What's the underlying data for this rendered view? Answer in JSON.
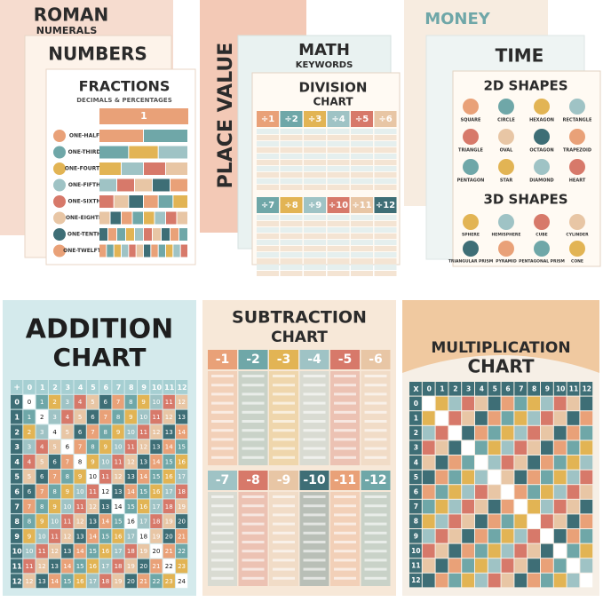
{
  "posters": {
    "roman": {
      "title": "ROMAN",
      "subtitle": "NUMERALS"
    },
    "numbers": {
      "title": "NUMBERS"
    },
    "fractions": {
      "title": "FRACTIONS",
      "subtitle": "DECIMALS & PERCENTAGES",
      "whole": "1",
      "rows": [
        "ONE-HALF",
        "ONE-THIRD",
        "ONE-FOURTH",
        "ONE-FIFTH",
        "ONE-SIXTH",
        "ONE-EIGHTH",
        "ONE-TENTH",
        "ONE-TWELFTH"
      ]
    },
    "place_value": {
      "title": "PLACE VALUE"
    },
    "math_keywords": {
      "title": "MATH",
      "subtitle": "KEYWORDS"
    },
    "division": {
      "title": "DIVISION",
      "subtitle": "CHART",
      "headers_top": [
        "÷1",
        "÷2",
        "÷3",
        "÷4",
        "÷5",
        "÷6"
      ],
      "headers_bottom": [
        "÷7",
        "÷8",
        "÷9",
        "÷10",
        "÷11",
        "÷12"
      ]
    },
    "money": {
      "title": "MONEY"
    },
    "time": {
      "title": "TIME"
    },
    "shapes_2d": {
      "title": "2D SHAPES",
      "labels": [
        "SQUARE",
        "CIRCLE",
        "HEXAGON",
        "RECTANGLE",
        "TRIANGLE",
        "OVAL",
        "OCTAGON",
        "TRAPEZOID",
        "PENTAGON",
        "STAR",
        "DIAMOND",
        "HEART"
      ]
    },
    "shapes_3d": {
      "title": "3D SHAPES",
      "labels": [
        "SPHERE",
        "HEMISPHERE",
        "CUBE",
        "CYLINDER",
        "TRIANGULAR PRISM",
        "PYRAMID",
        "PENTAGONAL PRISM",
        "CONE"
      ]
    },
    "addition": {
      "title": "ADDITION",
      "subtitle": "CHART",
      "corner": "+",
      "headers": [
        0,
        1,
        2,
        3,
        4,
        5,
        6,
        7,
        8,
        9,
        10,
        11,
        12
      ],
      "rows": [
        [
          0,
          1,
          2,
          3,
          4,
          5,
          6,
          7,
          8,
          9,
          10,
          11,
          12
        ],
        [
          1,
          2,
          3,
          4,
          5,
          6,
          7,
          8,
          9,
          10,
          11,
          12,
          13
        ],
        [
          2,
          3,
          4,
          5,
          6,
          7,
          8,
          9,
          10,
          11,
          12,
          13,
          14
        ],
        [
          3,
          4,
          5,
          6,
          7,
          8,
          9,
          10,
          11,
          12,
          13,
          14,
          15
        ],
        [
          4,
          5,
          6,
          7,
          8,
          9,
          10,
          11,
          12,
          13,
          14,
          15,
          16
        ],
        [
          5,
          6,
          7,
          8,
          9,
          10,
          11,
          12,
          13,
          14,
          15,
          16,
          17
        ],
        [
          6,
          7,
          8,
          9,
          10,
          11,
          12,
          13,
          14,
          15,
          16,
          17,
          18
        ],
        [
          7,
          8,
          9,
          10,
          11,
          12,
          13,
          14,
          15,
          16,
          17,
          18,
          19
        ],
        [
          8,
          9,
          10,
          11,
          12,
          13,
          14,
          15,
          16,
          17,
          18,
          19,
          20
        ],
        [
          9,
          10,
          11,
          12,
          13,
          14,
          15,
          16,
          17,
          18,
          19,
          20,
          21
        ],
        [
          10,
          11,
          12,
          13,
          14,
          15,
          16,
          17,
          18,
          19,
          20,
          21,
          22
        ],
        [
          11,
          12,
          13,
          14,
          15,
          16,
          17,
          18,
          19,
          20,
          21,
          22,
          23
        ],
        [
          12,
          13,
          14,
          15,
          16,
          17,
          18,
          19,
          20,
          21,
          22,
          23,
          24
        ]
      ]
    },
    "subtraction": {
      "title": "SUBTRACTION",
      "subtitle": "CHART",
      "headers_top": [
        "-1",
        "-2",
        "-3",
        "-4",
        "-5",
        "-6"
      ],
      "headers_bottom": [
        "-7",
        "-8",
        "-9",
        "-10",
        "-11",
        "-12"
      ]
    },
    "multiplication": {
      "title": "MULTIPLICATION",
      "subtitle": "CHART",
      "corner": "X",
      "headers": [
        0,
        1,
        2,
        3,
        4,
        5,
        6,
        7,
        8,
        9,
        10,
        11,
        12
      ]
    }
  }
}
